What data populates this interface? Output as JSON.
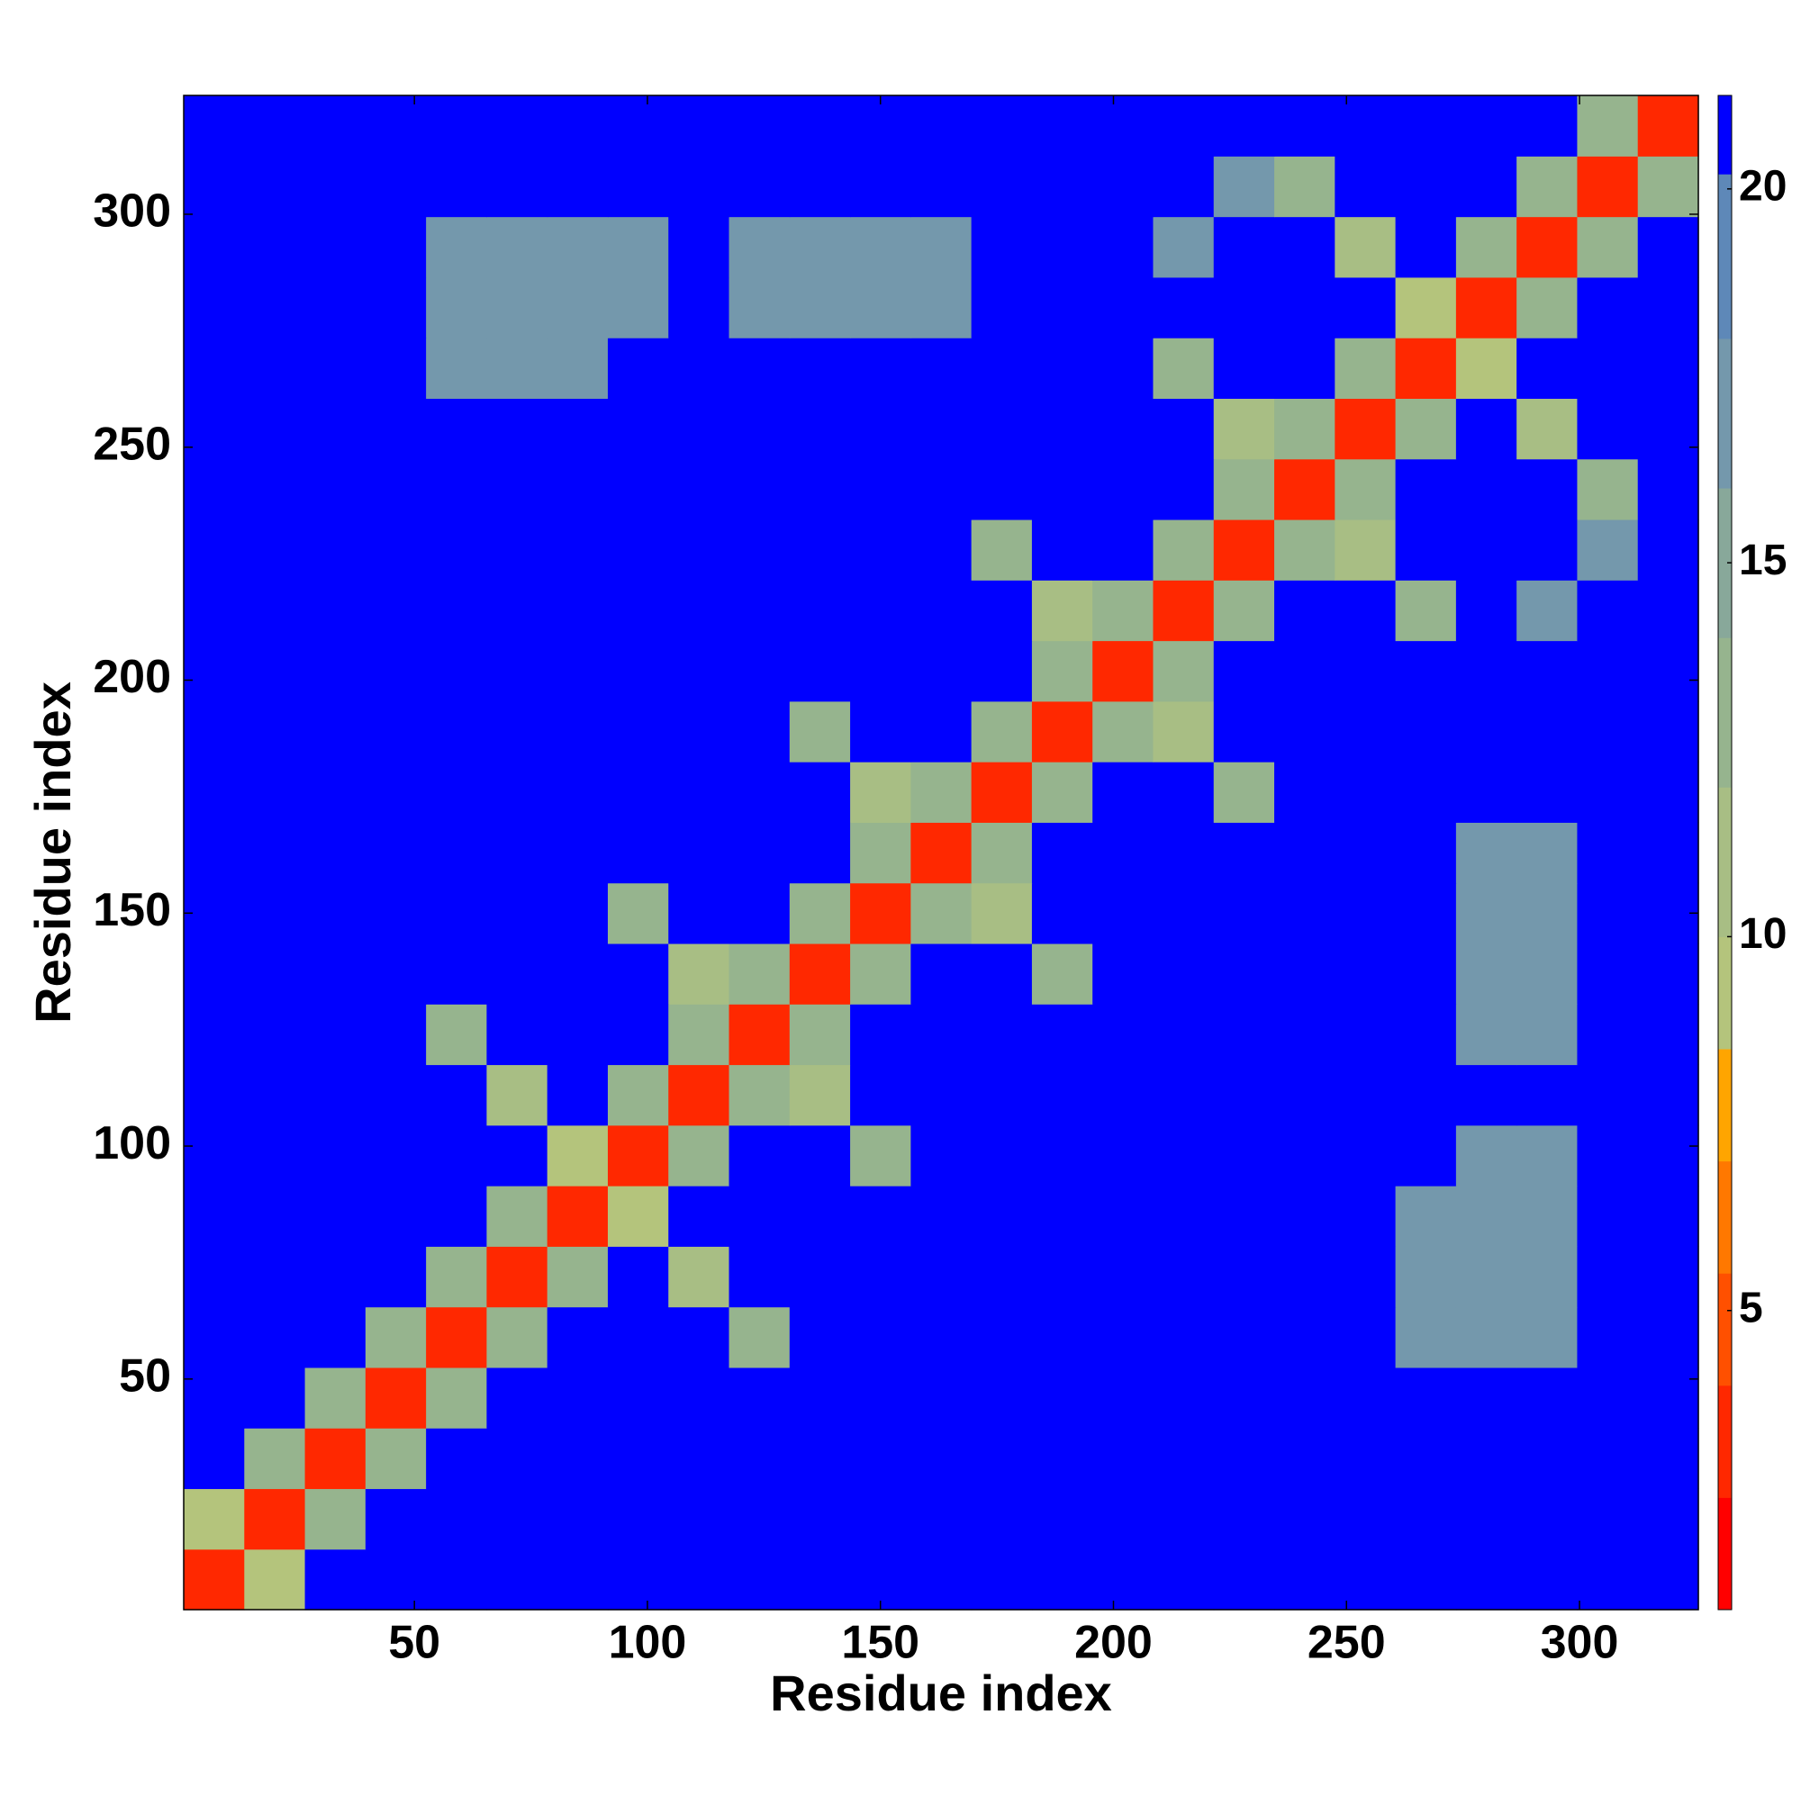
{
  "chart_data": {
    "type": "heatmap",
    "x_label": "Residue index",
    "y_label": "Residue index",
    "x": [
      7,
      20,
      33,
      46,
      59,
      72,
      85,
      98,
      111,
      124,
      137,
      150,
      163,
      176,
      189,
      202,
      215,
      228,
      241,
      254,
      267,
      280,
      293,
      306,
      319
    ],
    "y": [
      7,
      20,
      33,
      46,
      59,
      72,
      85,
      98,
      111,
      124,
      137,
      150,
      163,
      176,
      189,
      202,
      215,
      228,
      241,
      254,
      267,
      280,
      293,
      306,
      319
    ],
    "xlim": [
      0.5,
      325.5
    ],
    "ylim": [
      0.5,
      325.5
    ],
    "xticks": [
      50,
      100,
      150,
      200,
      250,
      300
    ],
    "yticks": [
      50,
      100,
      150,
      200,
      250,
      300
    ],
    "values": [
      [
        3,
        9,
        21,
        21,
        21,
        21,
        21,
        21,
        21,
        21,
        21,
        21,
        21,
        21,
        21,
        21,
        21,
        21,
        21,
        21,
        21,
        21,
        21,
        21,
        21
      ],
      [
        9,
        3,
        12,
        21,
        21,
        21,
        21,
        21,
        21,
        21,
        21,
        21,
        21,
        21,
        21,
        21,
        21,
        21,
        21,
        21,
        21,
        21,
        21,
        21,
        21
      ],
      [
        21,
        12,
        3,
        12,
        21,
        21,
        21,
        21,
        21,
        21,
        21,
        21,
        21,
        21,
        21,
        21,
        21,
        21,
        21,
        21,
        21,
        21,
        21,
        21,
        21
      ],
      [
        21,
        21,
        12,
        3,
        12,
        21,
        21,
        21,
        21,
        21,
        21,
        21,
        21,
        21,
        21,
        21,
        21,
        21,
        21,
        21,
        21,
        21,
        21,
        21,
        21
      ],
      [
        21,
        21,
        21,
        12,
        3,
        12,
        21,
        21,
        21,
        13,
        21,
        21,
        21,
        21,
        21,
        21,
        21,
        21,
        21,
        21,
        17,
        17,
        17,
        21,
        21
      ],
      [
        21,
        21,
        21,
        21,
        12,
        3,
        12,
        21,
        11,
        21,
        21,
        21,
        21,
        21,
        21,
        21,
        21,
        21,
        21,
        21,
        17,
        17,
        17,
        21,
        21
      ],
      [
        21,
        21,
        21,
        21,
        21,
        12,
        3,
        9,
        21,
        21,
        21,
        21,
        21,
        21,
        21,
        21,
        21,
        21,
        21,
        21,
        17,
        17,
        17,
        21,
        21
      ],
      [
        21,
        21,
        21,
        21,
        21,
        21,
        9,
        3,
        12,
        21,
        21,
        12,
        21,
        21,
        21,
        21,
        21,
        21,
        21,
        21,
        21,
        17,
        17,
        21,
        21
      ],
      [
        21,
        21,
        21,
        21,
        21,
        11,
        21,
        12,
        3,
        12,
        10,
        21,
        21,
        21,
        21,
        21,
        21,
        21,
        21,
        21,
        21,
        21,
        21,
        21,
        21
      ],
      [
        21,
        21,
        21,
        21,
        13,
        21,
        21,
        21,
        12,
        3,
        12,
        21,
        21,
        21,
        21,
        21,
        21,
        21,
        21,
        21,
        21,
        16,
        16,
        21,
        21
      ],
      [
        21,
        21,
        21,
        21,
        21,
        21,
        21,
        21,
        10,
        12,
        3,
        12,
        21,
        21,
        12,
        21,
        21,
        21,
        21,
        21,
        21,
        16,
        16,
        21,
        21
      ],
      [
        21,
        21,
        21,
        21,
        21,
        21,
        21,
        12,
        21,
        21,
        12,
        3,
        12,
        10,
        21,
        21,
        21,
        21,
        21,
        21,
        21,
        16,
        16,
        21,
        21
      ],
      [
        21,
        21,
        21,
        21,
        21,
        21,
        21,
        21,
        21,
        21,
        21,
        12,
        3,
        12,
        21,
        21,
        21,
        21,
        21,
        21,
        21,
        16,
        16,
        21,
        21
      ],
      [
        21,
        21,
        21,
        21,
        21,
        21,
        21,
        21,
        21,
        21,
        21,
        10,
        12,
        3,
        12,
        21,
        21,
        12,
        21,
        21,
        21,
        21,
        21,
        21,
        21
      ],
      [
        21,
        21,
        21,
        21,
        21,
        21,
        21,
        21,
        21,
        21,
        12,
        21,
        21,
        12,
        3,
        12,
        10,
        21,
        21,
        21,
        21,
        21,
        21,
        21,
        21
      ],
      [
        21,
        21,
        21,
        21,
        21,
        21,
        21,
        21,
        21,
        21,
        21,
        21,
        21,
        21,
        12,
        3,
        12,
        21,
        21,
        21,
        21,
        21,
        21,
        21,
        21
      ],
      [
        21,
        21,
        21,
        21,
        21,
        21,
        21,
        21,
        21,
        21,
        21,
        21,
        21,
        21,
        10,
        12,
        3,
        12,
        21,
        21,
        12,
        21,
        16,
        21,
        21
      ],
      [
        21,
        21,
        21,
        21,
        21,
        21,
        21,
        21,
        21,
        21,
        21,
        21,
        21,
        12,
        21,
        21,
        12,
        3,
        12,
        10,
        21,
        21,
        21,
        16,
        21
      ],
      [
        21,
        21,
        21,
        21,
        21,
        21,
        21,
        21,
        21,
        21,
        21,
        21,
        21,
        21,
        21,
        21,
        21,
        12,
        3,
        12,
        21,
        21,
        21,
        13,
        21
      ],
      [
        21,
        21,
        21,
        21,
        21,
        21,
        21,
        21,
        21,
        21,
        21,
        21,
        21,
        21,
        21,
        21,
        21,
        10,
        12,
        3,
        12,
        21,
        11,
        21,
        21
      ],
      [
        21,
        21,
        21,
        21,
        17,
        17,
        17,
        21,
        21,
        21,
        21,
        21,
        21,
        21,
        21,
        21,
        12,
        21,
        21,
        12,
        3,
        9,
        21,
        21,
        21
      ],
      [
        21,
        21,
        21,
        21,
        17,
        17,
        17,
        17,
        21,
        16,
        16,
        16,
        16,
        21,
        21,
        21,
        21,
        21,
        21,
        21,
        9,
        3,
        12,
        21,
        21
      ],
      [
        21,
        21,
        21,
        21,
        17,
        17,
        17,
        17,
        21,
        16,
        16,
        16,
        16,
        21,
        21,
        21,
        16,
        21,
        21,
        11,
        21,
        12,
        3,
        12,
        21
      ],
      [
        21,
        21,
        21,
        21,
        21,
        21,
        21,
        21,
        21,
        21,
        21,
        21,
        21,
        21,
        21,
        21,
        21,
        16,
        13,
        21,
        21,
        21,
        12,
        3,
        12
      ],
      [
        21,
        21,
        21,
        21,
        21,
        21,
        21,
        21,
        21,
        21,
        21,
        21,
        21,
        21,
        21,
        21,
        21,
        21,
        21,
        21,
        21,
        21,
        21,
        12,
        3
      ]
    ],
    "color_bounds": [
      1,
      2.5,
      4,
      5.5,
      7,
      8.5,
      10,
      12,
      14,
      16,
      18,
      20.2,
      21.25
    ],
    "colors": [
      "#ff0000",
      "#ff2800",
      "#ff5000",
      "#ff7800",
      "#ffa500",
      "#b4c47c",
      "#a8be84",
      "#96b48e",
      "#88a89a",
      "#7498ac",
      "#5e88b8",
      "#0000ff"
    ],
    "colorbar_ticks": [
      5,
      10,
      15,
      20
    ]
  }
}
